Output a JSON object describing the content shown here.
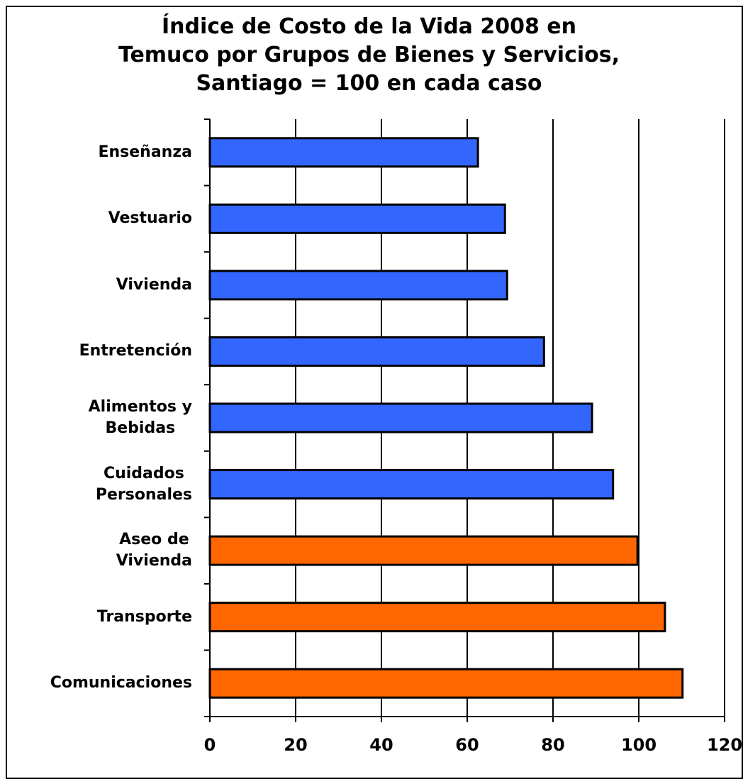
{
  "chart_data": {
    "type": "bar",
    "orientation": "horizontal",
    "title": "Índice de Costo de la Vida 2008 en\nTemuco por Grupos de Bienes y Servicios,\nSantiago = 100 en cada caso",
    "categories": [
      "Enseñanza",
      "Vestuario",
      "Vivienda",
      "Entretención",
      "Alimentos y\nBebidas",
      "Cuidados\nPersonales",
      "Aseo de\nVivienda",
      "Transporte",
      "Comunicaciones"
    ],
    "values": [
      62.5,
      68.8,
      69.3,
      77.9,
      89.1,
      94.0,
      99.7,
      106.1,
      110.2
    ],
    "colors": [
      "#3366ff",
      "#3366ff",
      "#3366ff",
      "#3366ff",
      "#3366ff",
      "#3366ff",
      "#ff6600",
      "#ff6600",
      "#ff6600"
    ],
    "xlim": [
      0,
      120
    ],
    "xticks": [
      0,
      20,
      40,
      60,
      80,
      100,
      120
    ],
    "grid": true
  }
}
